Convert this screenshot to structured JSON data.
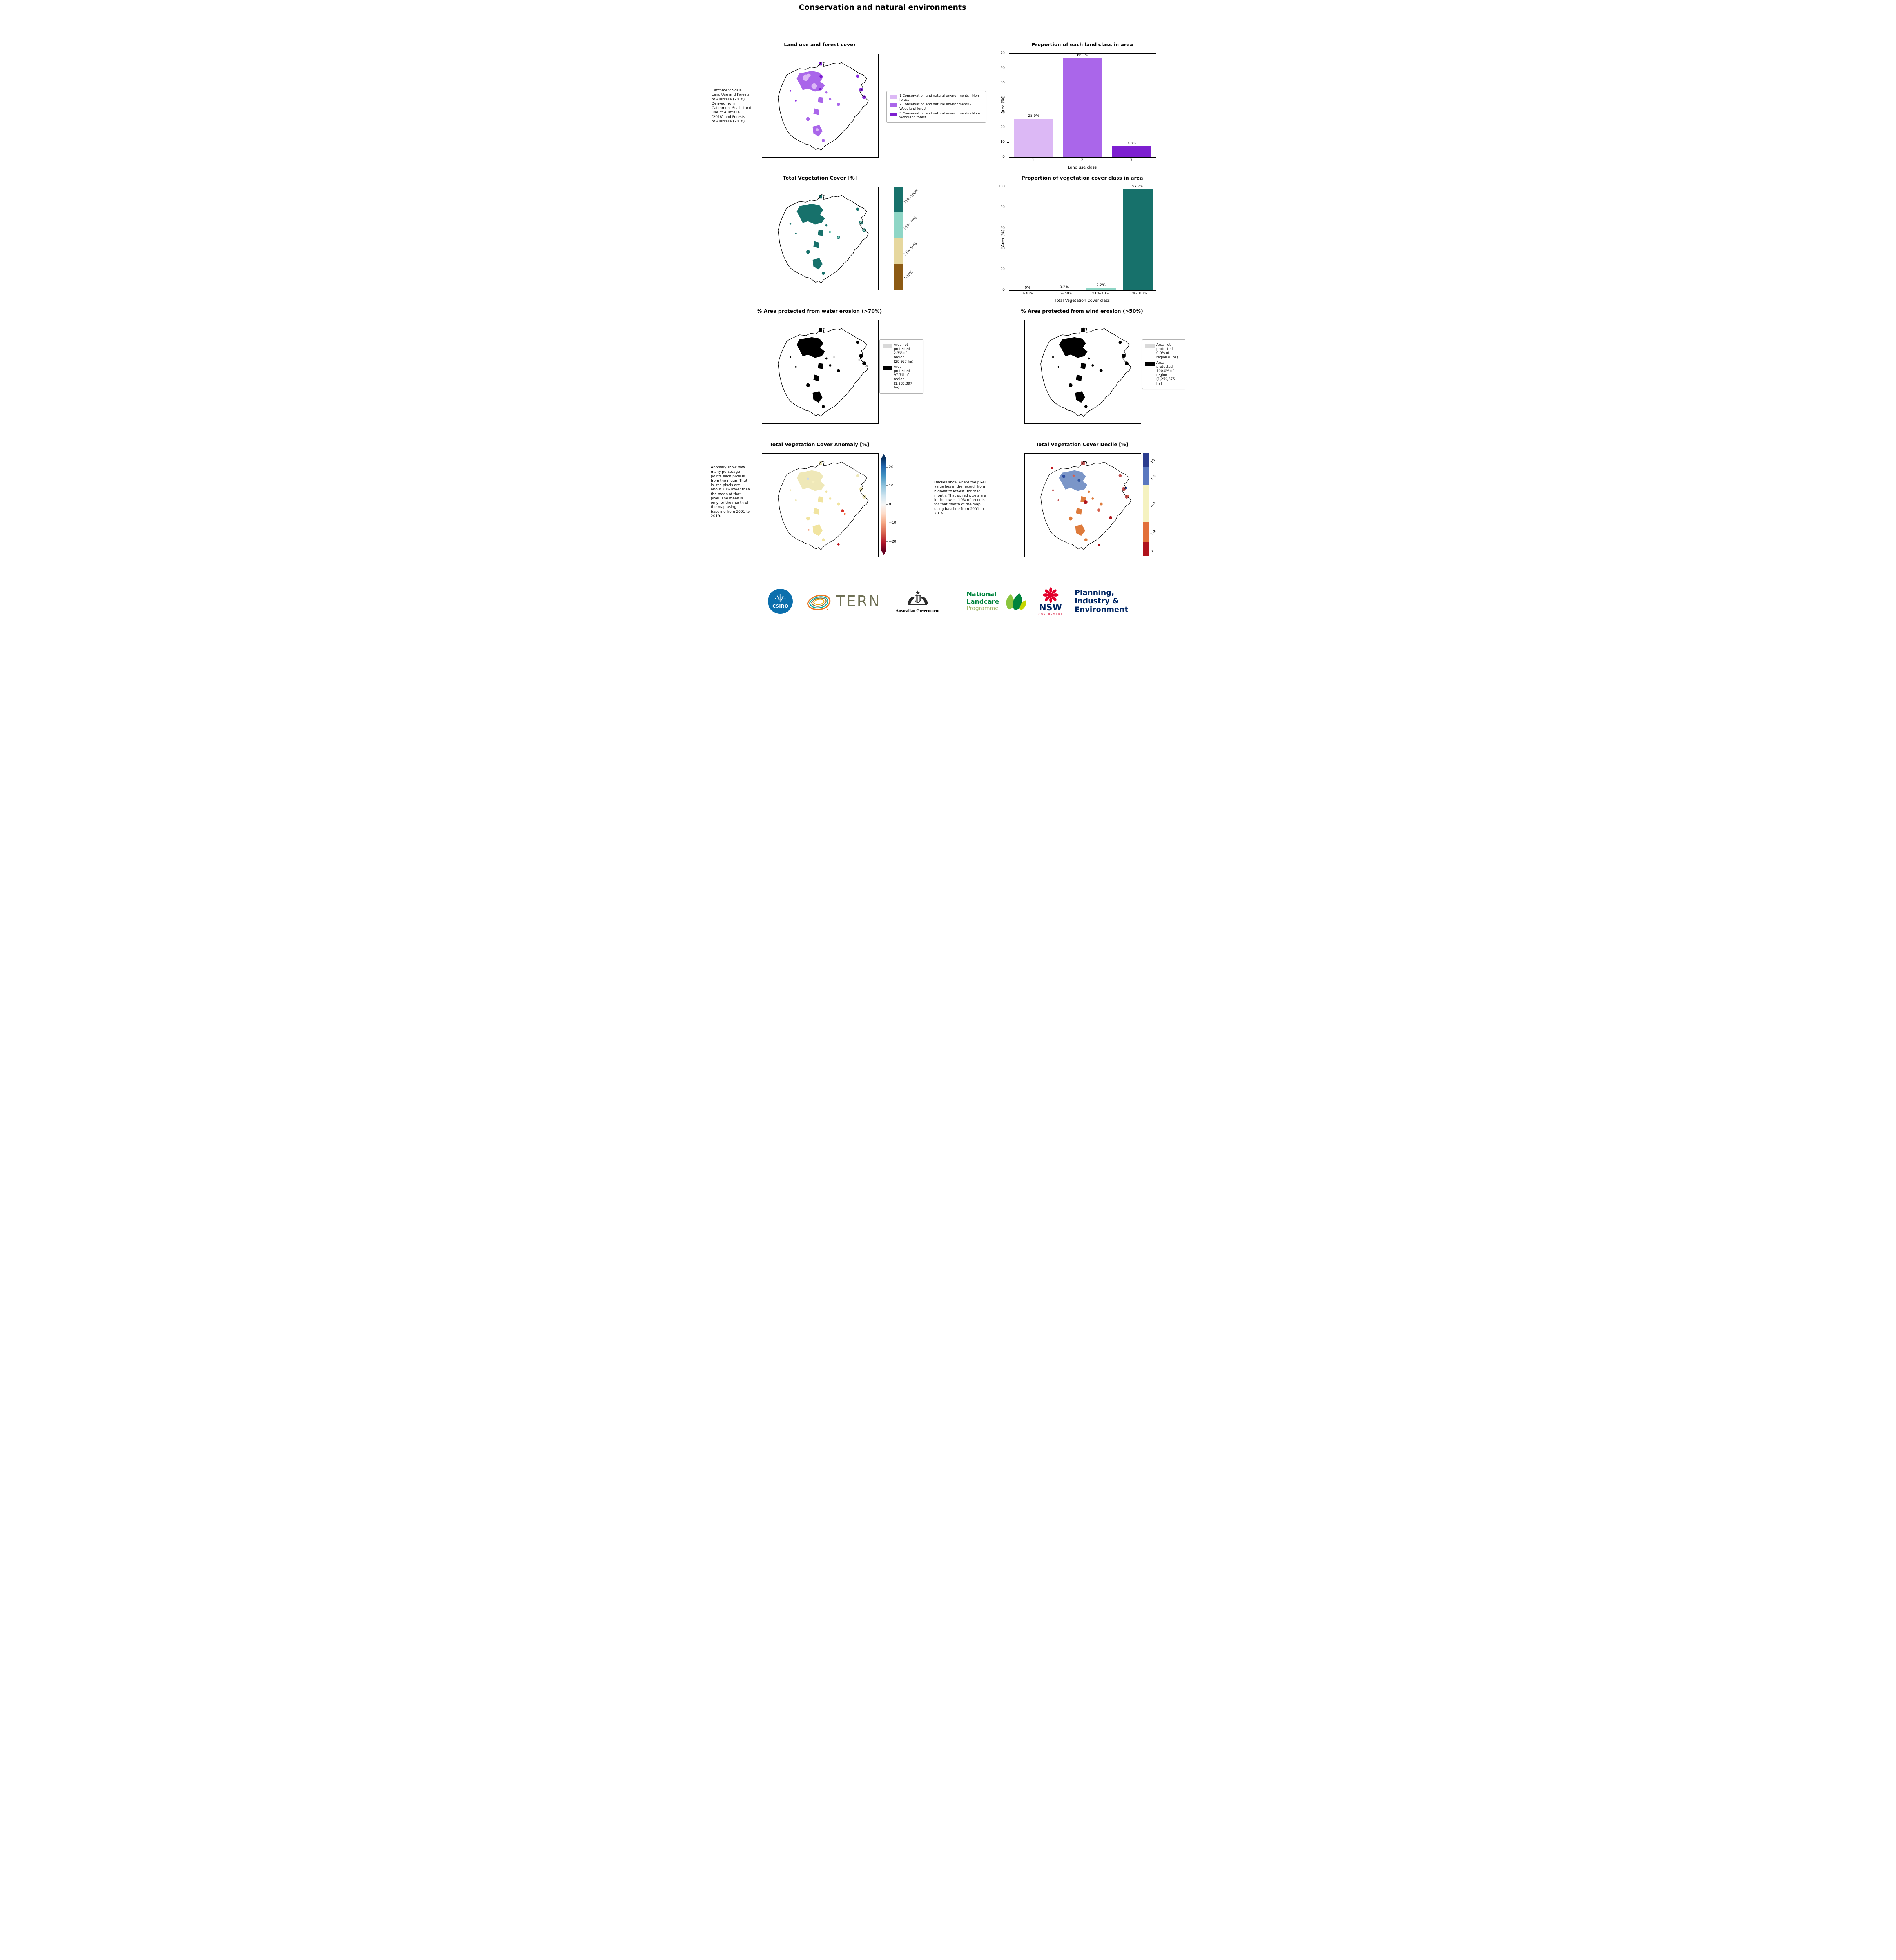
{
  "page": {
    "title": "Conservation and natural environments"
  },
  "landuse_panel": {
    "title": "Land use and forest cover",
    "note": " Catchment Scale\nLand Use and Forests\nof Australia (2018)\nDerived from\nCatchment Scale Land\nUse of Australia\n(2018) and Forests\nof Australia (2018)",
    "legend": [
      {
        "label": "1 Conservation and natural environments - Non-forest",
        "color": "#dcb8f5"
      },
      {
        "label": "2 Conservation and natural environments - Woodland forest",
        "color": "#aa66ea"
      },
      {
        "label": "3 Conservation and natural environments - Non-woodland forest",
        "color": "#7d1fd0"
      }
    ]
  },
  "veg_panel": {
    "title": "Total Vegetation Cover [%]",
    "colorbar": [
      {
        "label": "71%-100%",
        "color": "#17716b"
      },
      {
        "label": "51%-70%",
        "color": "#8fd6c6"
      },
      {
        "label": "31%-50%",
        "color": "#e6d79e"
      },
      {
        "label": "0-30%",
        "color": "#8c5a14"
      }
    ]
  },
  "water_panel": {
    "title": "% Area protected from water erosion (>70%)",
    "legend": [
      {
        "label": "Area not protected 2.3% of region (28,977 ha)",
        "color": "#d9d9d9"
      },
      {
        "label": "Area protected 97.7% of region (1,230,897 ha)",
        "color": "#000000"
      }
    ]
  },
  "wind_panel": {
    "title": "% Area protected from wind erosion (>50%)",
    "legend": [
      {
        "label": "Area not protected 0.0% of region (0 ha)",
        "color": "#d9d9d9"
      },
      {
        "label": "Area protected 100.0% of region (1,259,875 ha)",
        "color": "#000000"
      }
    ]
  },
  "anomaly_panel": {
    "title": "Total Vegetation Cover Anomaly [%]",
    "note": "Anomaly show how many percetage points each pixel is from the mean. That is, red pixels are about 20% lower than the mean of that pixel. The mean is only for the month of the map using baseline from 2001 to 2019.",
    "colorbar_ticks": [
      "20",
      "10",
      "0",
      "−10",
      "−20"
    ]
  },
  "decile_panel": {
    "title": "Total Vegetation Cover Decile [%]",
    "note": "Deciles show where the pixel value lies in the record, from highest to lowest, for that month. That is, red pixels are in the lowest 10% of records for that month of the map using baseline from 2001 to 2019.",
    "colorbar": [
      {
        "label": "10",
        "color": "#2b3d8f"
      },
      {
        "label": "8-9",
        "color": "#5a78bf"
      },
      {
        "label": "4-7",
        "color": "#f5f2c0"
      },
      {
        "label": "2-3",
        "color": "#e2703a"
      },
      {
        "label": "1",
        "color": "#b0131c"
      }
    ]
  },
  "chart_data": [
    {
      "type": "bar",
      "title": "Proportion of each land class in area",
      "categories": [
        "1",
        "2",
        "3"
      ],
      "values": [
        25.9,
        66.7,
        7.3
      ],
      "value_labels": [
        "25.9%",
        "66.7%",
        "7.3%"
      ],
      "bar_colors": [
        "#dcb8f5",
        "#aa66ea",
        "#7d1fd0"
      ],
      "xlabel": "Land use class",
      "ylabel": "Area (%)",
      "ylim": [
        0,
        70
      ],
      "yticks": [
        0,
        10,
        20,
        30,
        40,
        50,
        60,
        70
      ],
      "grid": false,
      "legend_position": "none"
    },
    {
      "type": "bar",
      "title": "Proportion of vegetation cover class in area",
      "categories": [
        "0-30%",
        "31%-50%",
        "51%-70%",
        "71%-100%"
      ],
      "values": [
        0,
        0.2,
        2.2,
        97.7
      ],
      "value_labels": [
        "0%",
        "0.2%",
        "2.2%",
        "97.7%"
      ],
      "bar_colors": [
        "#8c5a14",
        "#e6d79e",
        "#8fd6c6",
        "#17716b"
      ],
      "xlabel": "Total Vegetation Cover class",
      "ylabel": "Area (%)",
      "ylim": [
        0,
        100
      ],
      "yticks": [
        0,
        20,
        40,
        60,
        80,
        100
      ],
      "grid": false,
      "legend_position": "none"
    }
  ],
  "footer": {
    "csiro": "CSIRO",
    "tern": "TERN",
    "ausgov": "Australian Government",
    "landcare_lines": [
      "National",
      "Landcare",
      "Programme"
    ],
    "nsw": "NSW",
    "nsw_sub": "GOVERNMENT",
    "planning_lines": [
      "Planning,",
      "Industry &",
      "Environment"
    ]
  }
}
